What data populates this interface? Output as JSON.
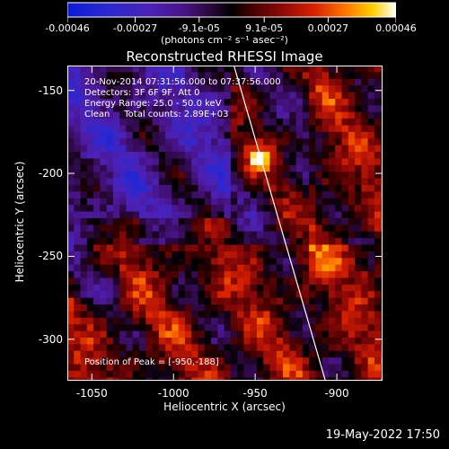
{
  "colorbar": {
    "ticks": [
      "-0.00046",
      "-0.00027",
      "-9.1e-05",
      "9.1e-05",
      "0.00027",
      "0.00046"
    ],
    "tick_values": [
      -0.00046,
      -0.00027,
      -9.1e-05,
      9.1e-05,
      0.00027,
      0.00046
    ],
    "unit_label": "(photons cm⁻² s⁻¹ asec⁻²)",
    "range": [
      -0.00046,
      0.00046
    ]
  },
  "annotation": {
    "lines": [
      "20-Nov-2014 07:31:56.000 to 07:37:56.000",
      "Detectors: 3F 6F 9F, Att 0",
      "Energy Range: 25.0 - 50.0 keV",
      "Clean     Total counts: 2.89E+03"
    ],
    "peak": "Position of Peak = [-950,-188]"
  },
  "datestamp": "19-May-2022 17:50",
  "chart_data": {
    "type": "heatmap",
    "title": "Reconstructed RHESSI Image",
    "xlabel": "Heliocentric X (arcsec)",
    "ylabel": "Heliocentric Y (arcsec)",
    "xlim": [
      -1065,
      -872
    ],
    "ylim": [
      -325,
      -135
    ],
    "xticks": [
      -1050,
      -1000,
      -950,
      -900
    ],
    "yticks": [
      -150,
      -200,
      -250,
      -300
    ],
    "xtick_labels": [
      "-1050",
      "-1000",
      "-950",
      "-900"
    ],
    "ytick_labels": [
      "-150",
      "-200",
      "-250",
      "-300"
    ],
    "colormap": "rhessi (blue-purple-red-orange-yellow-white)",
    "overlay_limb": {
      "points": [
        [
          -963,
          -135
        ],
        [
          -907,
          -325
        ]
      ]
    },
    "peak": [
      -950,
      -188
    ],
    "pixel_size_arcsec": 4
  }
}
